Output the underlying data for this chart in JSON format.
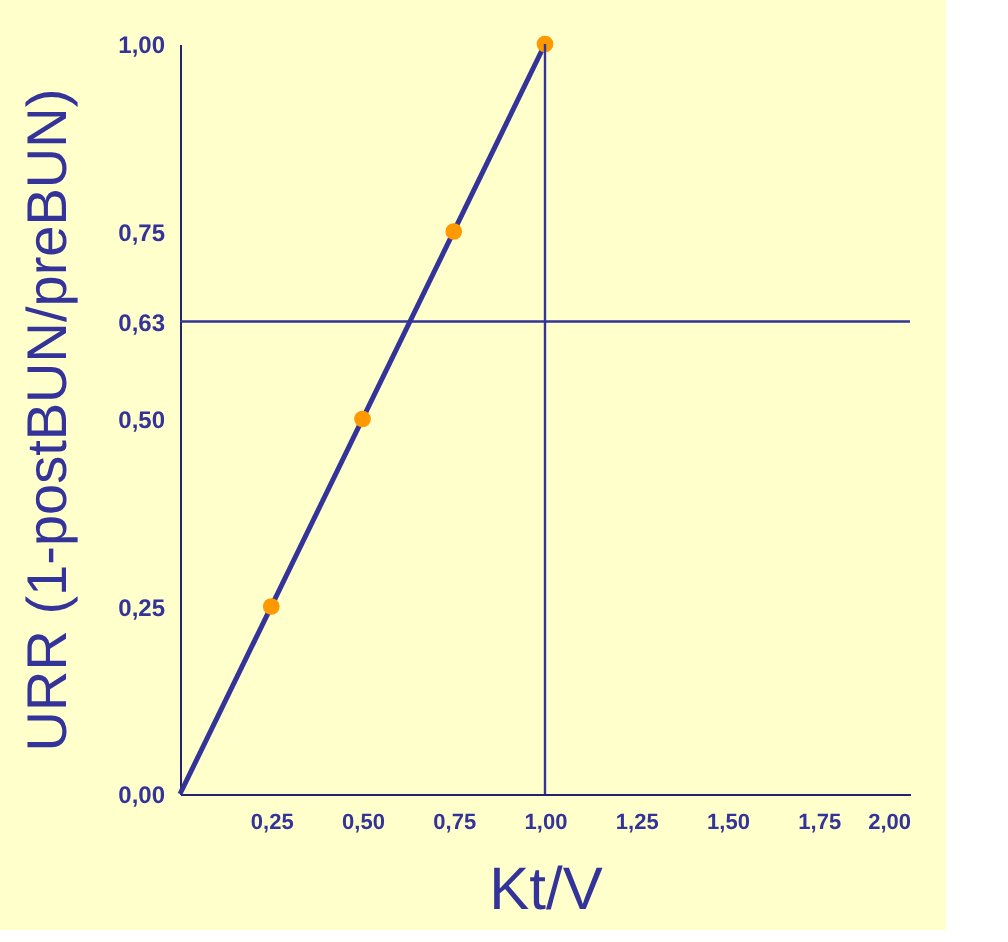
{
  "chart_data": {
    "type": "scatter",
    "xlabel": "Kt/V",
    "ylabel": "URR (1-postBUN/preBUN)",
    "xlim": [
      0,
      2
    ],
    "ylim": [
      0,
      1
    ],
    "xticks": [
      {
        "value": 0.25,
        "label": "0,25"
      },
      {
        "value": 0.5,
        "label": "0,50"
      },
      {
        "value": 0.75,
        "label": "0,75"
      },
      {
        "value": 1,
        "label": "1,00"
      },
      {
        "value": 1.25,
        "label": "1,25"
      },
      {
        "value": 1.5,
        "label": "1,50"
      },
      {
        "value": 1.75,
        "label": "1,75"
      },
      {
        "value": 2,
        "label": "2,00"
      }
    ],
    "yticks": [
      {
        "value": 0,
        "label": "0,00"
      },
      {
        "value": 0.25,
        "label": "0,25"
      },
      {
        "value": 0.5,
        "label": "0,50"
      },
      {
        "value": 0.63,
        "label": "0,63"
      },
      {
        "value": 0.75,
        "label": "0,75"
      },
      {
        "value": 1,
        "label": "1,00"
      }
    ],
    "series": [
      {
        "type": "line",
        "color": "#333399",
        "x": [
          0,
          1
        ],
        "values": [
          0,
          1
        ],
        "marker": "none",
        "line_style": "solid"
      },
      {
        "color": "#ff9900",
        "x": [
          0.25,
          0.5,
          0.75,
          1
        ],
        "values": [
          0.25,
          0.5,
          0.75,
          1
        ],
        "marker": "circle"
      }
    ],
    "ref_lines": [
      {
        "axis": "y",
        "value": 0.63,
        "color": "#333399"
      },
      {
        "axis": "x",
        "value": 1,
        "color": "#333399"
      }
    ],
    "grid": false
  }
}
